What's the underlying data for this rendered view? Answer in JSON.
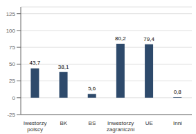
{
  "chart_data": {
    "type": "bar",
    "categories": [
      "Iwestorzy\npolscy",
      "BK",
      "BS",
      "Inwestorzy\nzagraniczni",
      "UE",
      "Inni"
    ],
    "values": [
      43.7,
      38.1,
      5.6,
      80.2,
      79.4,
      0.8
    ],
    "value_labels": [
      "43,7",
      "38,1",
      "5,6",
      "80,2",
      "79,4",
      "0,8"
    ],
    "data_labels": true,
    "color": "#2e4a6b",
    "ylim": [
      -25,
      135
    ],
    "yticks": [
      -25,
      0,
      25,
      50,
      75,
      100,
      125
    ],
    "grid": true
  }
}
